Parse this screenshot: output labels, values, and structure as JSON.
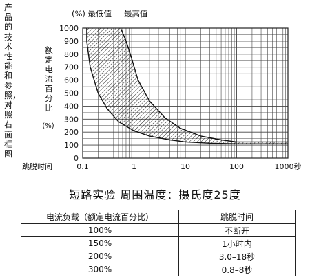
{
  "side_caption": "产品的技术性能和参照，对照右面框图",
  "chart_data": {
    "type": "area",
    "title": "",
    "legend": [
      "(%) 最低值",
      "最高值"
    ],
    "ylabel_vertical": "额定电流百分比",
    "ylabel_unit": "(%)",
    "xlabel": "跳脱时间",
    "x_scale": "log",
    "xlim": [
      0.1,
      1000
    ],
    "ylim": [
      0,
      1000
    ],
    "y_ticks": [
      0,
      100,
      200,
      300,
      400,
      500,
      600,
      700,
      800,
      900,
      1000
    ],
    "x_tick_labels": [
      {
        "x": 0.1,
        "label": "0.1"
      },
      {
        "x": 1,
        "label": "1"
      },
      {
        "x": 10,
        "label": "10"
      },
      {
        "x": 100,
        "label": "100"
      },
      {
        "x": 1000,
        "label": "1000秒"
      }
    ],
    "series": [
      {
        "name": "最低值",
        "x": [
          0.12,
          0.12,
          0.14,
          0.2,
          0.3,
          0.5,
          1,
          2,
          5,
          10,
          30,
          100,
          1000
        ],
        "y": [
          1000,
          900,
          700,
          500,
          380,
          280,
          210,
          170,
          140,
          125,
          115,
          110,
          110
        ]
      },
      {
        "name": "最高值",
        "x": [
          0.55,
          0.7,
          0.85,
          1.2,
          2,
          4,
          8,
          20,
          50,
          100,
          1000
        ],
        "y": [
          1000,
          900,
          800,
          600,
          440,
          310,
          230,
          170,
          140,
          125,
          125
        ]
      }
    ]
  },
  "table_title": "短路实验  周围温度：摄氏度25度",
  "table": {
    "headers": [
      "电流负载（额定电流百分比）",
      "跳脱时间"
    ],
    "rows": [
      [
        "100%",
        "不断开"
      ],
      [
        "150%",
        "1小时内"
      ],
      [
        "200%",
        "3.0–18秒"
      ],
      [
        "300%",
        "0.8–8秒"
      ]
    ]
  }
}
